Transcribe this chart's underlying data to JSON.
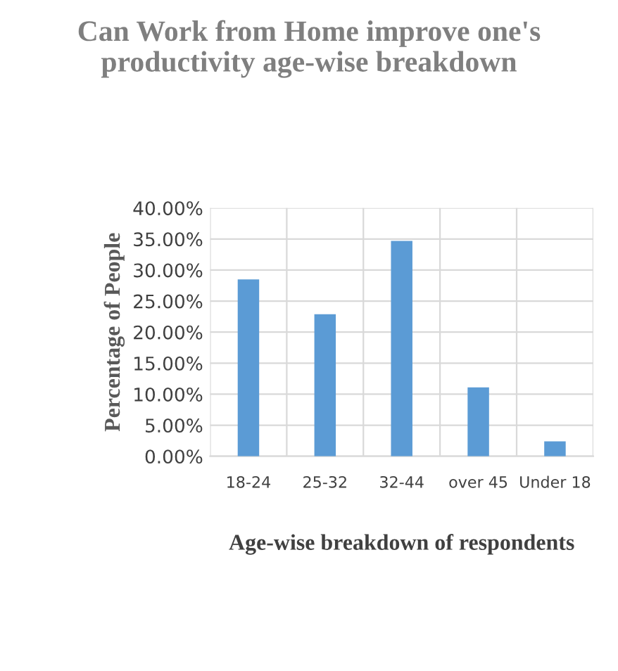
{
  "chart_data": {
    "type": "bar",
    "title": "Can Work from Home improve one's productivity age-wise breakdown",
    "xlabel": "Age-wise breakdown of respondents",
    "ylabel": "Percentage of People",
    "categories": [
      "18-24",
      "25-32",
      "32-44",
      "over 45",
      "Under 18"
    ],
    "values": [
      28.5,
      22.9,
      34.7,
      11.1,
      2.4
    ],
    "color": "#5b9bd5",
    "ylim": [
      0,
      40
    ],
    "yticks": [
      {
        "value": 0,
        "label": "0.00%"
      },
      {
        "value": 5,
        "label": "5.00%"
      },
      {
        "value": 10,
        "label": "10.00%"
      },
      {
        "value": 15,
        "label": "15.00%"
      },
      {
        "value": 20,
        "label": "20.00%"
      },
      {
        "value": 25,
        "label": "25.00%"
      },
      {
        "value": 30,
        "label": "30.00%"
      },
      {
        "value": 35,
        "label": "35.00%"
      },
      {
        "value": 40,
        "label": "40.00%"
      }
    ],
    "grid": true,
    "legend": false
  }
}
